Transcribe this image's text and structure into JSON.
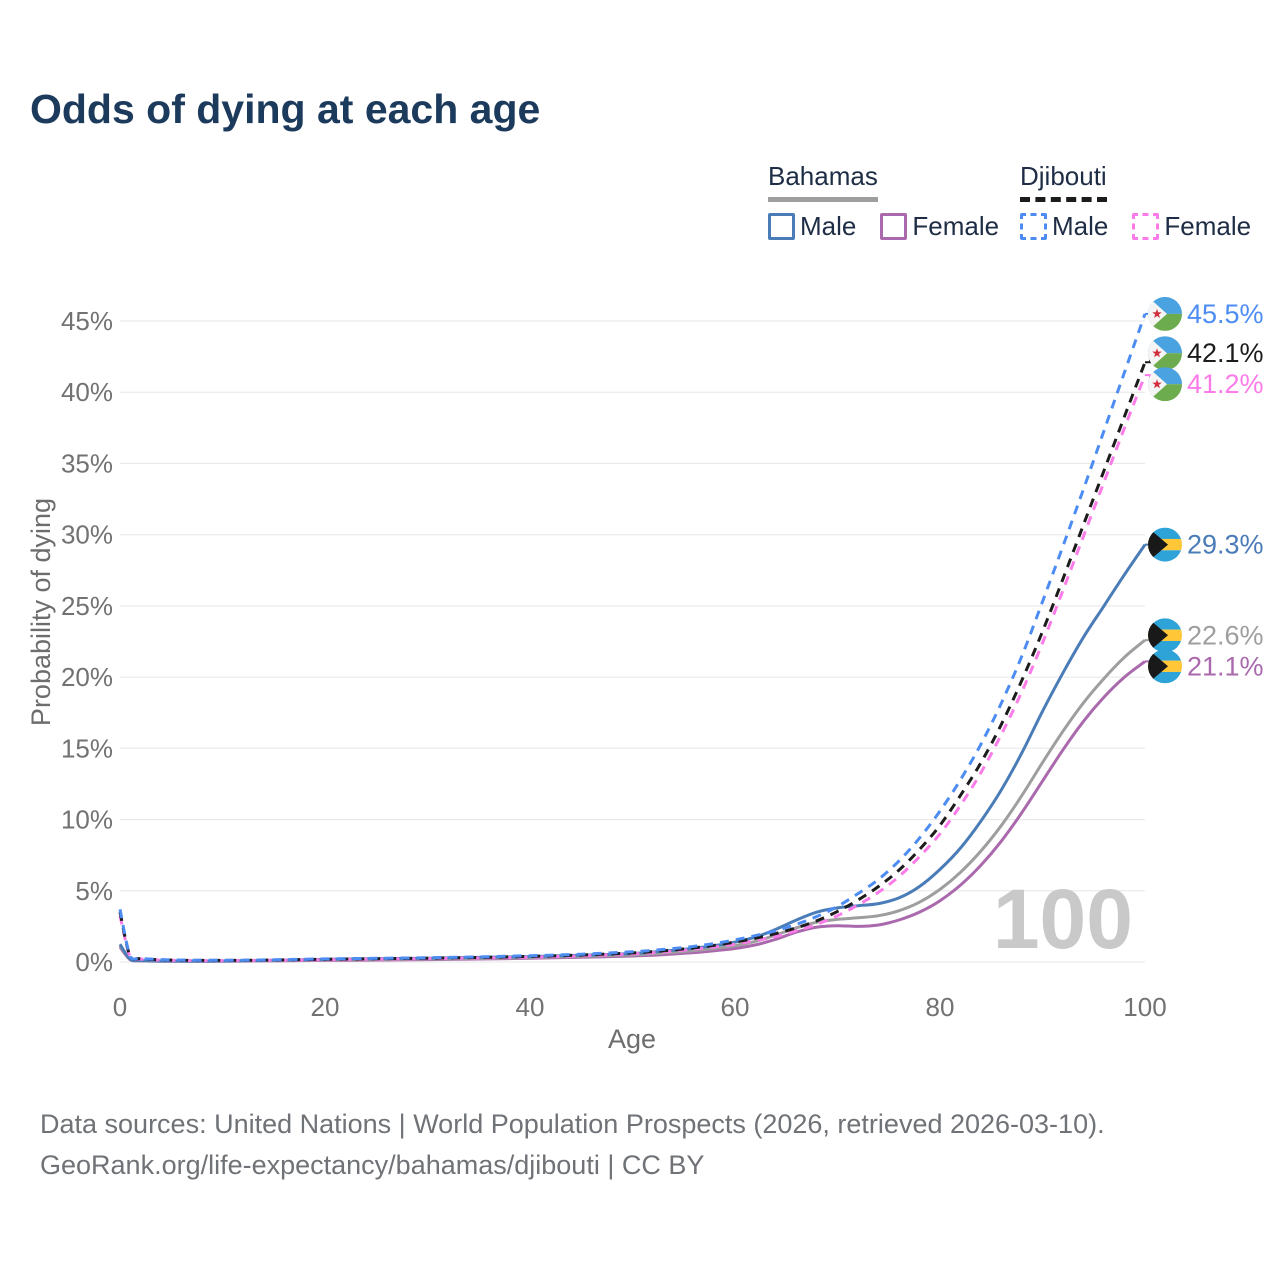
{
  "title": "Odds of dying at each age",
  "watermark": "100",
  "legend": {
    "groups": [
      {
        "country": "Bahamas",
        "line_style": "solid",
        "line_color": "#9e9e9e",
        "items": [
          {
            "label": "Male",
            "series": "Bahamas Male"
          },
          {
            "label": "Female",
            "series": "Bahamas Female"
          }
        ]
      },
      {
        "country": "Djibouti",
        "line_style": "dashed",
        "line_color": "#1c1c1c",
        "items": [
          {
            "label": "Male",
            "series": "Djibouti Male"
          },
          {
            "label": "Female",
            "series": "Djibouti Female"
          }
        ]
      }
    ]
  },
  "footer": {
    "line1": "Data sources: United Nations | World Population Prospects (2026, retrieved 2026-03-10).",
    "line2": "GeoRank.org/life-expectancy/bahamas/djibouti | CC BY"
  },
  "chart_data": {
    "type": "line",
    "title": "Odds of dying at each age",
    "xlabel": "Age",
    "ylabel": "Probability of dying",
    "xlim": [
      0,
      100
    ],
    "ylim_percent": [
      0,
      45
    ],
    "x_ticks": [
      0,
      20,
      40,
      60,
      80,
      100
    ],
    "y_ticks": [
      0,
      5,
      10,
      15,
      20,
      25,
      30,
      35,
      40,
      45
    ],
    "y_tick_suffix": "%",
    "grid": "horizontal",
    "legend_position": "top-right",
    "x": [
      0,
      1,
      2,
      5,
      10,
      15,
      20,
      25,
      30,
      35,
      40,
      45,
      50,
      52,
      54,
      56,
      58,
      60,
      62,
      64,
      66,
      68,
      70,
      72,
      74,
      76,
      78,
      80,
      82,
      84,
      86,
      88,
      90,
      92,
      94,
      96,
      98,
      100
    ],
    "series": [
      {
        "name": "Djibouti Male",
        "country": "Djibouti",
        "sex": "Male",
        "flag": "djibouti",
        "dash": true,
        "color": "#4d8df3",
        "end_label": "45.5%",
        "end_value": 45.5,
        "values": [
          3.7,
          0.38,
          0.25,
          0.15,
          0.12,
          0.16,
          0.22,
          0.26,
          0.3,
          0.36,
          0.44,
          0.55,
          0.72,
          0.82,
          0.95,
          1.1,
          1.3,
          1.55,
          1.85,
          2.2,
          2.65,
          3.2,
          3.9,
          4.8,
          5.8,
          7.1,
          8.7,
          10.6,
          12.8,
          15.3,
          18.2,
          21.5,
          25.3,
          29.2,
          33.2,
          37.3,
          41.4,
          45.5
        ]
      },
      {
        "name": "Djibouti Both sexes",
        "country": "Djibouti",
        "sex": "Both sexes",
        "flag": "djibouti",
        "dash": true,
        "color": "#1c1c1c",
        "end_label": "42.1%",
        "end_value": 42.1,
        "values": [
          3.5,
          0.36,
          0.23,
          0.13,
          0.11,
          0.14,
          0.19,
          0.23,
          0.27,
          0.32,
          0.39,
          0.49,
          0.64,
          0.73,
          0.85,
          1.0,
          1.17,
          1.4,
          1.67,
          2.0,
          2.4,
          2.9,
          3.55,
          4.35,
          5.3,
          6.45,
          7.9,
          9.6,
          11.7,
          14.0,
          16.7,
          19.8,
          23.2,
          26.9,
          30.7,
          34.5,
          38.3,
          42.1
        ]
      },
      {
        "name": "Djibouti Female",
        "country": "Djibouti",
        "sex": "Female",
        "flag": "djibouti",
        "dash": true,
        "color": "#fb7ce8",
        "end_label": "41.2%",
        "end_value": 41.2,
        "values": [
          3.25,
          0.33,
          0.21,
          0.12,
          0.1,
          0.12,
          0.16,
          0.2,
          0.24,
          0.28,
          0.34,
          0.43,
          0.57,
          0.65,
          0.76,
          0.9,
          1.05,
          1.25,
          1.5,
          1.8,
          2.2,
          2.65,
          3.25,
          4.0,
          4.9,
          6.0,
          7.4,
          9.0,
          11.0,
          13.3,
          16.0,
          19.0,
          22.4,
          26.1,
          29.9,
          33.7,
          37.5,
          41.2
        ]
      },
      {
        "name": "Bahamas Male",
        "country": "Bahamas",
        "sex": "Male",
        "flag": "bahamas",
        "dash": false,
        "color": "#4a7cb8",
        "end_label": "29.3%",
        "end_value": 29.3,
        "values": [
          1.25,
          0.18,
          0.1,
          0.07,
          0.07,
          0.12,
          0.19,
          0.23,
          0.27,
          0.32,
          0.38,
          0.47,
          0.6,
          0.7,
          0.82,
          0.97,
          1.15,
          1.4,
          1.75,
          2.3,
          2.95,
          3.5,
          3.8,
          3.95,
          4.1,
          4.5,
          5.3,
          6.5,
          8.0,
          9.9,
          12.1,
          14.7,
          17.6,
          20.3,
          22.8,
          25.0,
          27.2,
          29.3
        ]
      },
      {
        "name": "Bahamas Both sexes",
        "country": "Bahamas",
        "sex": "Both sexes",
        "flag": "bahamas",
        "dash": false,
        "color": "#9e9e9e",
        "end_label": "22.6%",
        "end_value": 22.6,
        "values": [
          1.15,
          0.16,
          0.09,
          0.06,
          0.06,
          0.1,
          0.15,
          0.18,
          0.21,
          0.25,
          0.31,
          0.39,
          0.5,
          0.58,
          0.68,
          0.8,
          0.95,
          1.15,
          1.45,
          1.9,
          2.4,
          2.8,
          3.0,
          3.1,
          3.25,
          3.6,
          4.2,
          5.1,
          6.3,
          7.8,
          9.6,
          11.7,
          14.0,
          16.2,
          18.2,
          19.9,
          21.4,
          22.6
        ]
      },
      {
        "name": "Bahamas Female",
        "country": "Bahamas",
        "sex": "Female",
        "flag": "bahamas",
        "dash": false,
        "color": "#aa69ad",
        "end_label": "21.1%",
        "end_value": 21.1,
        "values": [
          1.05,
          0.15,
          0.08,
          0.05,
          0.05,
          0.08,
          0.11,
          0.14,
          0.17,
          0.21,
          0.26,
          0.33,
          0.42,
          0.48,
          0.56,
          0.66,
          0.79,
          0.95,
          1.2,
          1.6,
          2.1,
          2.45,
          2.55,
          2.5,
          2.6,
          2.95,
          3.5,
          4.3,
          5.4,
          6.8,
          8.5,
          10.5,
          12.7,
          14.9,
          16.9,
          18.6,
          20.0,
          21.1
        ]
      }
    ],
    "flag_colors": {
      "djibouti": {
        "top": "#4aa2e0",
        "bottom": "#6cab4e",
        "wedge": "#f5f5f5",
        "star": "#d22d3c"
      },
      "bahamas": {
        "band": "#2ea3d8",
        "middle": "#ffc737",
        "chevron": "#191919"
      }
    }
  }
}
